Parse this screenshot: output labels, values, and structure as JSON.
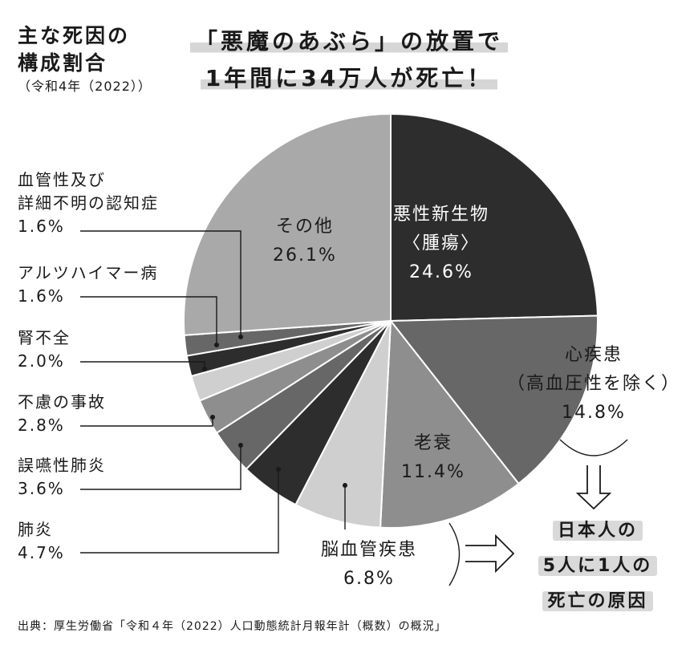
{
  "title": {
    "line1": "主な死因の",
    "line2": "構成割合",
    "line3": "（令和4年（2022））"
  },
  "headline": {
    "line1": "「悪魔のあぶら」の放置で",
    "line2": "1年間に34万人が死亡！"
  },
  "callout": {
    "line1": "日本人の",
    "line2": "5人に1人の",
    "line3": "死亡の原因"
  },
  "source": "出典：厚生労働省「令和４年（2022）人口動態統計月報年計（概数）の概況」",
  "colors": {
    "black": "#2d2d2d",
    "dark": "#676767",
    "mid": "#8e8e8e",
    "light": "#a9a9a9",
    "pale": "#cfcfcf",
    "outline": "#ffffff"
  },
  "chart_data": {
    "type": "pie",
    "unit": "%",
    "slices": [
      {
        "label": "悪性新生物〈腫瘍〉",
        "label_lines": [
          "悪性新生物",
          "〈腫瘍〉"
        ],
        "value": 24.6,
        "value_text": "24.6%",
        "color": "#2d2d2d"
      },
      {
        "label": "心疾患（高血圧性を除く）",
        "label_lines": [
          "心疾患",
          "（高血圧性を除く）"
        ],
        "value": 14.8,
        "value_text": "14.8%",
        "color": "#676767"
      },
      {
        "label": "老衰",
        "label_lines": [
          "老衰"
        ],
        "value": 11.4,
        "value_text": "11.4%",
        "color": "#8e8e8e"
      },
      {
        "label": "脳血管疾患",
        "label_lines": [
          "脳血管疾患"
        ],
        "value": 6.8,
        "value_text": "6.8%",
        "color": "#cfcfcf"
      },
      {
        "label": "肺炎",
        "label_lines": [
          "肺炎"
        ],
        "value": 4.7,
        "value_text": "4.7%",
        "color": "#2d2d2d"
      },
      {
        "label": "誤嚥性肺炎",
        "label_lines": [
          "誤嚥性肺炎"
        ],
        "value": 3.6,
        "value_text": "3.6%",
        "color": "#676767"
      },
      {
        "label": "不慮の事故",
        "label_lines": [
          "不慮の事故"
        ],
        "value": 2.8,
        "value_text": "2.8%",
        "color": "#8e8e8e"
      },
      {
        "label": "腎不全",
        "label_lines": [
          "腎不全"
        ],
        "value": 2.0,
        "value_text": "2.0%",
        "color": "#cfcfcf"
      },
      {
        "label": "アルツハイマー病",
        "label_lines": [
          "アルツハイマー病"
        ],
        "value": 1.6,
        "value_text": "1.6%",
        "color": "#2d2d2d"
      },
      {
        "label": "血管性及び詳細不明の認知症",
        "label_lines": [
          "血管性及び",
          "詳細不明の認知症"
        ],
        "value": 1.6,
        "value_text": "1.6%",
        "color": "#676767"
      },
      {
        "label": "その他",
        "label_lines": [
          "その他"
        ],
        "value": 26.1,
        "value_text": "26.1%",
        "color": "#a9a9a9"
      }
    ]
  }
}
